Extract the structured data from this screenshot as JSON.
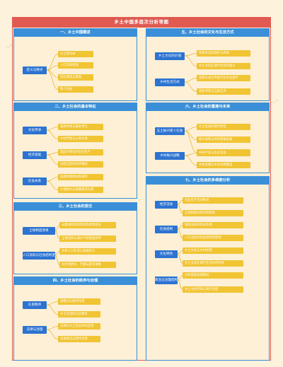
{
  "title": "乡土中国多层次分析导图",
  "sections": [
    {
      "heading": "一、乡土中国概述",
      "groups": [
        {
          "label": "定义与特点",
          "items": [
            "以土地为本",
            "人口流动性低",
            "社区紧密与稳固",
            "熟人社会"
          ]
        }
      ]
    },
    {
      "heading": "二、乡土社会的基本特征",
      "groups": [
        {
          "label": "文化传承",
          "items": [
            "家族传承与基本单元",
            "乡村传统与公共价值"
          ]
        },
        {
          "label": "经济基础",
          "items": [
            "家庭为单位的农业生产",
            "自给自足的经济模式"
          ]
        },
        {
          "label": "社会关系",
          "items": [
            "血缘和地缘关系纽带",
            "乡规民约与道德规范约束"
          ]
        }
      ]
    },
    {
      "heading": "三、乡土社会的变迁",
      "groups": [
        {
          "label": "土地制度改革",
          "items": [
            "从集体所有制到承包经营权分",
            "土地流转与城乡产权制度改革"
          ]
        },
        {
          "label": "人口流动与社会结构变化",
          "items": [
            "乡村人口外流与进城务工",
            "乡村老龄化、空巢与留守现象"
          ]
        }
      ]
    },
    {
      "heading": "四、乡土社会的秩序与治理",
      "groups": [
        {
          "label": "礼俗秩序",
          "items": [
            "道德与礼俗的作用",
            "乡土社会的礼治秩序"
          ]
        },
        {
          "label": "法律与治理",
          "items": [
            "法律在乡土社会中的应用",
            "法律观念与现代治理"
          ]
        }
      ]
    },
    {
      "heading": "五、乡土社会的文化与生活方式",
      "groups": [
        {
          "label": "乡土文化的价值",
          "items": [
            "传统文化的保护与传承",
            "乡土文化在现代社会的意义"
          ]
        },
        {
          "label": "乡村生活方式",
          "items": [
            "农耕方式与传统节庆文化遗产",
            "农民邻里与互助互济"
          ]
        }
      ]
    },
    {
      "heading": "六、乡土社会的重建与未来",
      "groups": [
        {
          "label": "五土振兴新人社会",
          "items": [
            "乡土社会的现代转型",
            "城乡统筹与共同富裕发展",
            "城乡融合进程研究路线"
          ]
        },
        {
          "label": "乡村振兴战略",
          "items": [
            "乡村产业与生态宜居",
            "乡村治理与乡风文明建设"
          ]
        }
      ]
    },
    {
      "heading": "七、乡土社会的多维度分析",
      "groups": [
        {
          "label": "经济活动",
          "items": [
            "农业生产活动特点",
            "土地制度对经济的影响"
          ]
        },
        {
          "label": "社会结构",
          "items": [
            "家族关系的社会作用",
            "人口流动对社会结构的影响"
          ]
        },
        {
          "label": "文化特色",
          "items": [
            "乡土文化与乡村民俗",
            "乡土文化在现代生活中的传承"
          ]
        },
        {
          "label": "政治与治理结构",
          "items": [
            "乡村基层治理模式",
            "乡土文化传承与现代治理"
          ]
        }
      ]
    }
  ]
}
